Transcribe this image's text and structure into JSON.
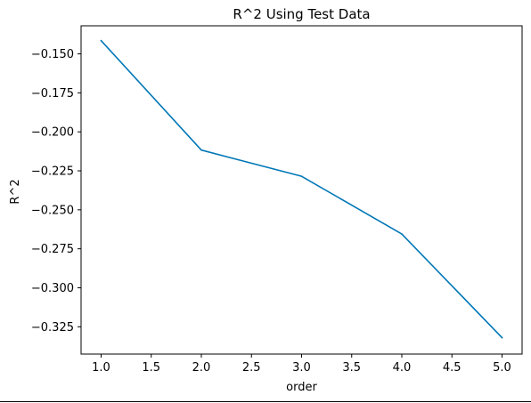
{
  "chart_data": {
    "type": "line",
    "title": "R^2 Using Test Data",
    "xlabel": "order",
    "ylabel": "R^2",
    "x": [
      1.0,
      2.0,
      3.0,
      4.0,
      5.0
    ],
    "series": [
      {
        "values": [
          -0.1415,
          -0.2117,
          -0.2285,
          -0.2655,
          -0.332
        ],
        "color": "#0077b6"
      }
    ],
    "xlim": [
      0.8,
      5.2
    ],
    "ylim": [
      -0.3425,
      -0.132
    ],
    "xticks": [
      1.0,
      1.5,
      2.0,
      2.5,
      3.0,
      3.5,
      4.0,
      4.5,
      5.0
    ],
    "xtick_labels": [
      "1.0",
      "1.5",
      "2.0",
      "2.5",
      "3.0",
      "3.5",
      "4.0",
      "4.5",
      "5.0"
    ],
    "yticks": [
      -0.15,
      -0.175,
      -0.2,
      -0.225,
      -0.25,
      -0.275,
      -0.3,
      -0.325
    ],
    "ytick_labels": [
      "−0.150",
      "−0.175",
      "−0.200",
      "−0.225",
      "−0.250",
      "−0.275",
      "−0.300",
      "−0.325"
    ],
    "grid": false,
    "legend": "none"
  }
}
